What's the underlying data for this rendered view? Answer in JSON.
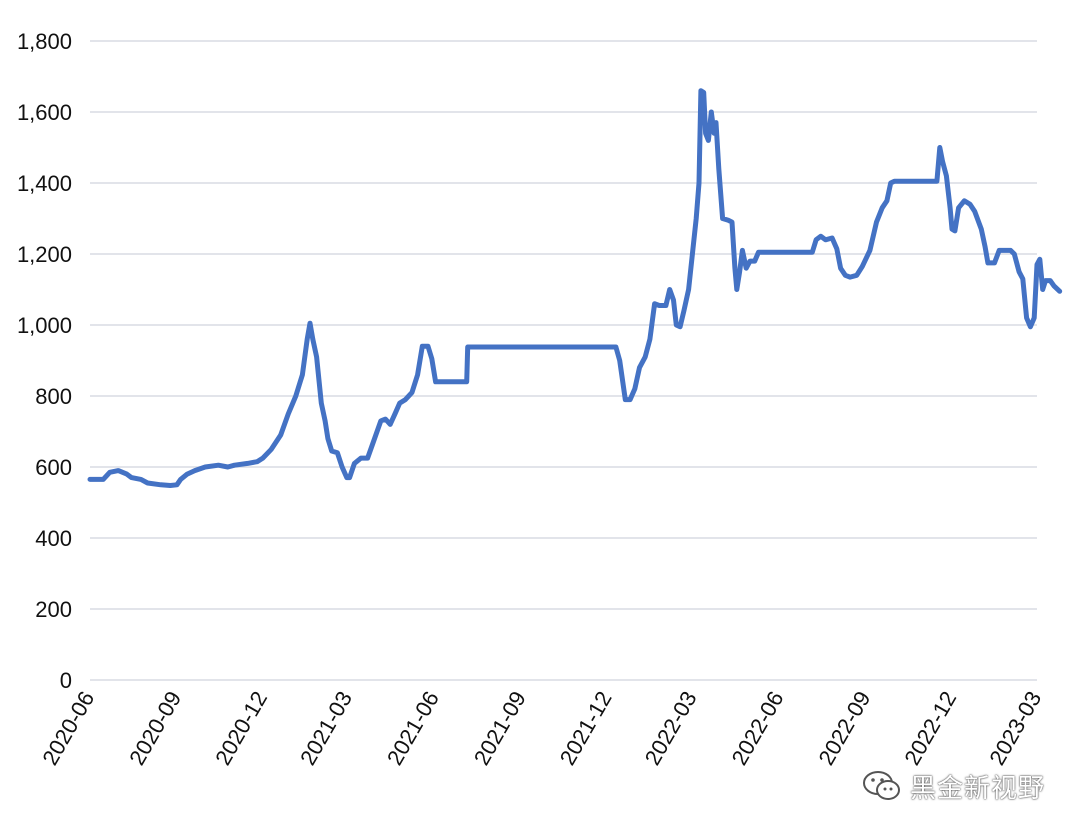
{
  "chart_data": {
    "type": "line",
    "title": "",
    "xlabel": "",
    "ylabel": "",
    "ylim": [
      0,
      1800
    ],
    "y_ticks": [
      "0",
      "200",
      "400",
      "600",
      "800",
      "1,000",
      "1,200",
      "1,400",
      "1,600",
      "1,800"
    ],
    "x_ticks": [
      "2020-06",
      "2020-09",
      "2020-12",
      "2021-03",
      "2021-06",
      "2021-09",
      "2021-12",
      "2022-03",
      "2022-06",
      "2022-09",
      "2022-12",
      "2023-03"
    ],
    "grid": "horizontal",
    "legend": "none",
    "colors": {
      "line": "#4472c4",
      "grid": "#d9dce3",
      "text": "#111111"
    },
    "series": [
      {
        "points": [
          [
            "2020-06-01",
            565
          ],
          [
            "2020-06-15",
            565
          ],
          [
            "2020-06-22",
            585
          ],
          [
            "2020-07-01",
            590
          ],
          [
            "2020-07-10",
            580
          ],
          [
            "2020-07-15",
            570
          ],
          [
            "2020-07-25",
            565
          ],
          [
            "2020-08-01",
            555
          ],
          [
            "2020-08-15",
            550
          ],
          [
            "2020-08-25",
            548
          ],
          [
            "2020-09-01",
            550
          ],
          [
            "2020-09-05",
            565
          ],
          [
            "2020-09-12",
            580
          ],
          [
            "2020-09-20",
            590
          ],
          [
            "2020-10-01",
            600
          ],
          [
            "2020-10-15",
            605
          ],
          [
            "2020-10-25",
            600
          ],
          [
            "2020-11-01",
            605
          ],
          [
            "2020-11-15",
            610
          ],
          [
            "2020-11-25",
            615
          ],
          [
            "2020-12-01",
            625
          ],
          [
            "2020-12-10",
            650
          ],
          [
            "2020-12-20",
            690
          ],
          [
            "2020-12-28",
            750
          ],
          [
            "2021-01-05",
            800
          ],
          [
            "2021-01-12",
            860
          ],
          [
            "2021-01-17",
            960
          ],
          [
            "2021-01-20",
            1005
          ],
          [
            "2021-01-23",
            960
          ],
          [
            "2021-01-27",
            910
          ],
          [
            "2021-02-01",
            780
          ],
          [
            "2021-02-05",
            730
          ],
          [
            "2021-02-08",
            680
          ],
          [
            "2021-02-12",
            645
          ],
          [
            "2021-02-18",
            640
          ],
          [
            "2021-02-23",
            600
          ],
          [
            "2021-02-28",
            570
          ],
          [
            "2021-03-03",
            570
          ],
          [
            "2021-03-08",
            610
          ],
          [
            "2021-03-15",
            625
          ],
          [
            "2021-03-22",
            625
          ],
          [
            "2021-03-28",
            670
          ],
          [
            "2021-04-05",
            730
          ],
          [
            "2021-04-10",
            735
          ],
          [
            "2021-04-15",
            720
          ],
          [
            "2021-04-20",
            750
          ],
          [
            "2021-04-25",
            780
          ],
          [
            "2021-05-01",
            790
          ],
          [
            "2021-05-08",
            810
          ],
          [
            "2021-05-14",
            860
          ],
          [
            "2021-05-19",
            940
          ],
          [
            "2021-05-25",
            940
          ],
          [
            "2021-05-29",
            905
          ],
          [
            "2021-06-02",
            840
          ],
          [
            "2021-06-10",
            840
          ],
          [
            "2021-06-20",
            840
          ],
          [
            "2021-07-01",
            840
          ],
          [
            "2021-07-05",
            840
          ],
          [
            "2021-07-06",
            938
          ],
          [
            "2021-08-01",
            938
          ],
          [
            "2021-09-01",
            938
          ],
          [
            "2021-10-01",
            938
          ],
          [
            "2021-11-01",
            938
          ],
          [
            "2021-12-01",
            938
          ],
          [
            "2021-12-10",
            938
          ],
          [
            "2021-12-14",
            900
          ],
          [
            "2021-12-20",
            790
          ],
          [
            "2021-12-25",
            790
          ],
          [
            "2021-12-30",
            820
          ],
          [
            "2022-01-04",
            880
          ],
          [
            "2022-01-10",
            910
          ],
          [
            "2022-01-15",
            960
          ],
          [
            "2022-01-20",
            1060
          ],
          [
            "2022-01-25",
            1055
          ],
          [
            "2022-02-01",
            1055
          ],
          [
            "2022-02-05",
            1100
          ],
          [
            "2022-02-09",
            1070
          ],
          [
            "2022-02-12",
            1000
          ],
          [
            "2022-02-16",
            995
          ],
          [
            "2022-02-20",
            1040
          ],
          [
            "2022-02-25",
            1100
          ],
          [
            "2022-03-01",
            1200
          ],
          [
            "2022-03-05",
            1300
          ],
          [
            "2022-03-08",
            1400
          ],
          [
            "2022-03-10",
            1660
          ],
          [
            "2022-03-13",
            1655
          ],
          [
            "2022-03-15",
            1540
          ],
          [
            "2022-03-18",
            1520
          ],
          [
            "2022-03-21",
            1600
          ],
          [
            "2022-03-24",
            1540
          ],
          [
            "2022-03-26",
            1570
          ],
          [
            "2022-03-29",
            1440
          ],
          [
            "2022-04-02",
            1300
          ],
          [
            "2022-04-08",
            1295
          ],
          [
            "2022-04-12",
            1290
          ],
          [
            "2022-04-15",
            1160
          ],
          [
            "2022-04-17",
            1100
          ],
          [
            "2022-04-20",
            1150
          ],
          [
            "2022-04-23",
            1210
          ],
          [
            "2022-04-27",
            1160
          ],
          [
            "2022-05-01",
            1180
          ],
          [
            "2022-05-06",
            1180
          ],
          [
            "2022-05-10",
            1205
          ],
          [
            "2022-06-01",
            1205
          ],
          [
            "2022-07-01",
            1205
          ],
          [
            "2022-07-06",
            1205
          ],
          [
            "2022-07-10",
            1240
          ],
          [
            "2022-07-15",
            1250
          ],
          [
            "2022-07-20",
            1240
          ],
          [
            "2022-07-27",
            1245
          ],
          [
            "2022-08-01",
            1215
          ],
          [
            "2022-08-05",
            1160
          ],
          [
            "2022-08-10",
            1140
          ],
          [
            "2022-08-15",
            1135
          ],
          [
            "2022-08-22",
            1140
          ],
          [
            "2022-08-28",
            1165
          ],
          [
            "2022-09-05",
            1210
          ],
          [
            "2022-09-12",
            1290
          ],
          [
            "2022-09-18",
            1330
          ],
          [
            "2022-09-23",
            1350
          ],
          [
            "2022-09-27",
            1400
          ],
          [
            "2022-10-01",
            1405
          ],
          [
            "2022-10-15",
            1405
          ],
          [
            "2022-11-01",
            1405
          ],
          [
            "2022-11-15",
            1405
          ],
          [
            "2022-11-18",
            1500
          ],
          [
            "2022-11-21",
            1460
          ],
          [
            "2022-11-25",
            1420
          ],
          [
            "2022-11-29",
            1330
          ],
          [
            "2022-12-01",
            1270
          ],
          [
            "2022-12-04",
            1265
          ],
          [
            "2022-12-08",
            1330
          ],
          [
            "2022-12-14",
            1350
          ],
          [
            "2022-12-20",
            1340
          ],
          [
            "2022-12-25",
            1320
          ],
          [
            "2023-01-01",
            1270
          ],
          [
            "2023-01-05",
            1220
          ],
          [
            "2023-01-08",
            1175
          ],
          [
            "2023-01-15",
            1175
          ],
          [
            "2023-01-20",
            1210
          ],
          [
            "2023-02-01",
            1210
          ],
          [
            "2023-02-05",
            1200
          ],
          [
            "2023-02-10",
            1150
          ],
          [
            "2023-02-14",
            1130
          ],
          [
            "2023-02-18",
            1020
          ],
          [
            "2023-02-22",
            995
          ],
          [
            "2023-02-26",
            1020
          ],
          [
            "2023-03-01",
            1170
          ],
          [
            "2023-03-04",
            1185
          ],
          [
            "2023-03-07",
            1100
          ],
          [
            "2023-03-10",
            1125
          ],
          [
            "2023-03-15",
            1125
          ],
          [
            "2023-03-19",
            1110
          ],
          [
            "2023-03-25",
            1095
          ]
        ]
      }
    ]
  },
  "watermark": {
    "text": "黑金新视野",
    "icon": "wechat-icon"
  }
}
